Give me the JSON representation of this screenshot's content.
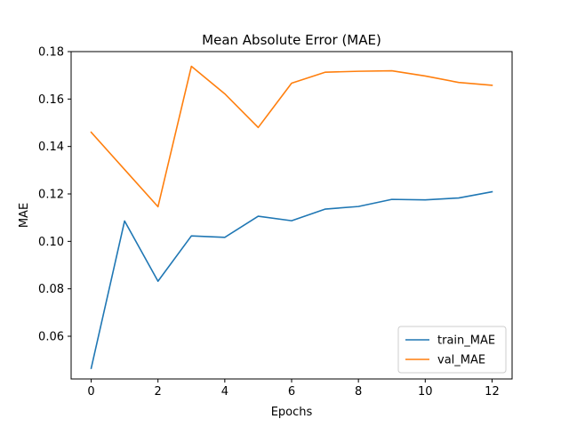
{
  "chart_data": {
    "type": "line",
    "title": "Mean Absolute Error (MAE)",
    "xlabel": "Epochs",
    "ylabel": "MAE",
    "xlim": [
      -0.6,
      12.6
    ],
    "ylim": [
      0.042,
      0.18
    ],
    "xticks": [
      0,
      2,
      4,
      6,
      8,
      10,
      12
    ],
    "xtick_labels": [
      "0",
      "2",
      "4",
      "6",
      "8",
      "10",
      "12"
    ],
    "yticks": [
      0.06,
      0.08,
      0.1,
      0.12,
      0.14,
      0.16,
      0.18
    ],
    "ytick_labels": [
      "0.06",
      "0.08",
      "0.10",
      "0.12",
      "0.14",
      "0.16",
      "0.18"
    ],
    "grid": false,
    "legend_position": "lower-right",
    "x": [
      0,
      1,
      2,
      3,
      4,
      5,
      6,
      7,
      8,
      9,
      10,
      11,
      12
    ],
    "series": [
      {
        "name": "train_MAE",
        "color": "#1f77b4",
        "values": [
          0.0465,
          0.1086,
          0.0832,
          0.1023,
          0.1017,
          0.1106,
          0.1087,
          0.1136,
          0.1147,
          0.1177,
          0.1175,
          0.1183,
          0.1209
        ]
      },
      {
        "name": "val_MAE",
        "color": "#ff7f0e",
        "values": [
          0.146,
          0.1303,
          0.1146,
          0.1738,
          0.1622,
          0.148,
          0.1667,
          0.1713,
          0.1717,
          0.1719,
          0.1697,
          0.167,
          0.1658
        ]
      }
    ]
  }
}
